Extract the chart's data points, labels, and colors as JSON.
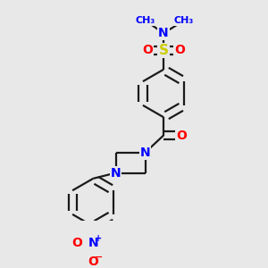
{
  "bg_color": "#e8e8e8",
  "bond_color": "#1a1a1a",
  "bond_width": 1.6,
  "dbo": 0.018,
  "atom_colors": {
    "N": "#0000ff",
    "O": "#ff0000",
    "S": "#cccc00",
    "C": "#1a1a1a"
  },
  "font_size": 9,
  "fig_size": [
    3.0,
    3.0
  ],
  "dpi": 100
}
